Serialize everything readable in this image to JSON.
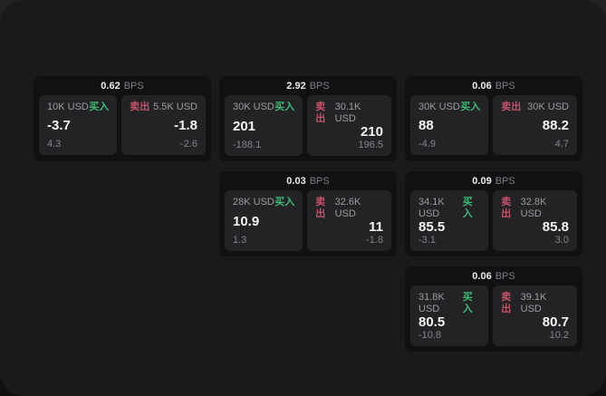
{
  "labels": {
    "bps_unit": "BPS",
    "buy": "买入",
    "sell": "卖出"
  },
  "colors": {
    "buy_green": "#3bbc75",
    "sell_red": "#c6516a",
    "window_bg": "#1a1a1c",
    "card_bg": "#111113",
    "panel_bg": "#232326"
  },
  "cards": [
    {
      "bps": "0.62",
      "buy": {
        "size": "10K USD",
        "value": "-3.7",
        "sub": "4.3"
      },
      "sell": {
        "size": "5.5K USD",
        "value": "-1.8",
        "sub": "-2.6"
      }
    },
    {
      "bps": "2.92",
      "buy": {
        "size": "30K USD",
        "value": "201",
        "sub": "-188.1"
      },
      "sell": {
        "size": "30.1K USD",
        "value": "210",
        "sub": "196.5"
      }
    },
    {
      "bps": "0.06",
      "buy": {
        "size": "30K USD",
        "value": "88",
        "sub": "-4.9"
      },
      "sell": {
        "size": "30K USD",
        "value": "88.2",
        "sub": "4.7"
      }
    },
    {
      "bps": "0.03",
      "buy": {
        "size": "28K USD",
        "value": "10.9",
        "sub": "1.3"
      },
      "sell": {
        "size": "32.6K USD",
        "value": "11",
        "sub": "-1.8"
      }
    },
    {
      "bps": "0.09",
      "buy": {
        "size": "34.1K USD",
        "value": "85.5",
        "sub": "-3.1"
      },
      "sell": {
        "size": "32.8K USD",
        "value": "85.8",
        "sub": "3.0"
      }
    },
    {
      "bps": "0.06",
      "buy": {
        "size": "31.8K USD",
        "value": "80.5",
        "sub": "-10.8"
      },
      "sell": {
        "size": "39.1K USD",
        "value": "80.7",
        "sub": "10.2"
      }
    }
  ]
}
